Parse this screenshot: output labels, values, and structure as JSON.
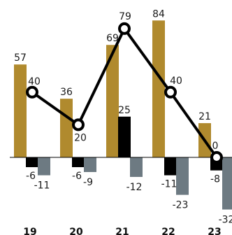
{
  "chart_data": {
    "type": "bar",
    "title": "",
    "xlabel": "",
    "ylabel": "",
    "categories": [
      "19",
      "20",
      "21",
      "22",
      "23"
    ],
    "series": [
      {
        "kind": "bar",
        "color": "#b08a2e",
        "values": [
          57,
          36,
          69,
          84,
          21
        ],
        "labels": [
          "57",
          "36",
          "69",
          "84",
          "21"
        ]
      },
      {
        "kind": "bar",
        "color": "#000000",
        "values": [
          -6,
          -6,
          25,
          -11,
          -8
        ],
        "labels": [
          "-6",
          "-6",
          "25",
          "-11",
          "-8"
        ]
      },
      {
        "kind": "bar",
        "color": "#6d7a82",
        "values": [
          -11,
          -9,
          -12,
          -23,
          -32
        ],
        "labels": [
          "-11",
          "-9",
          "-12",
          "-23",
          "-32"
        ]
      },
      {
        "kind": "line",
        "color": "#000000",
        "values": [
          40,
          20,
          79,
          40,
          0
        ],
        "labels": [
          "40",
          "20",
          "79",
          "40",
          "0"
        ]
      }
    ],
    "ylim": [
      -36,
      95
    ],
    "grid": false,
    "legend": "none"
  }
}
